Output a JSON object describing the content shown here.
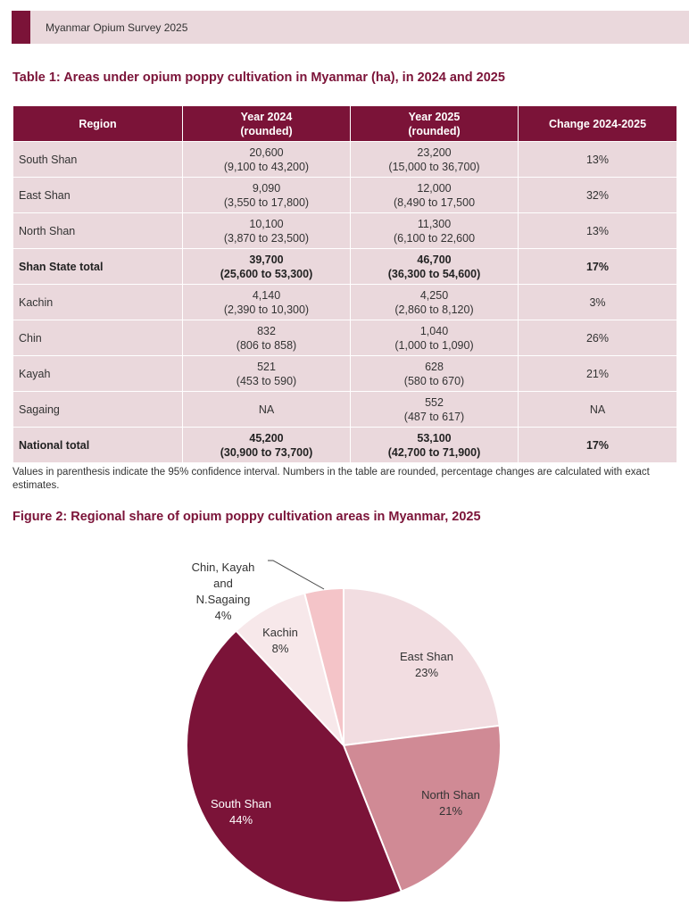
{
  "header": {
    "running_title": "Myanmar Opium Survey 2025"
  },
  "table": {
    "title": "Table 1: Areas under opium poppy cultivation in Myanmar (ha), in 2024 and 2025",
    "columns": [
      [
        "Region"
      ],
      [
        "Year 2024",
        "(rounded)"
      ],
      [
        "Year 2025",
        "(rounded)"
      ],
      [
        "Change 2024-2025"
      ]
    ],
    "rows": [
      {
        "region": "South Shan",
        "y2024": "20,600",
        "ci2024": "(9,100 to 43,200)",
        "y2025": "23,200",
        "ci2025": "(15,000 to 36,700)",
        "change": "13%",
        "bold": false
      },
      {
        "region": "East Shan",
        "y2024": "9,090",
        "ci2024": "(3,550 to 17,800)",
        "y2025": "12,000",
        "ci2025": "(8,490 to 17,500",
        "change": "32%",
        "bold": false
      },
      {
        "region": "North Shan",
        "y2024": "10,100",
        "ci2024": "(3,870 to 23,500)",
        "y2025": "11,300",
        "ci2025": "(6,100 to 22,600",
        "change": "13%",
        "bold": false
      },
      {
        "region": "Shan State total",
        "y2024": "39,700",
        "ci2024": "(25,600 to 53,300)",
        "y2025": "46,700",
        "ci2025": "(36,300 to 54,600)",
        "change": "17%",
        "bold": true
      },
      {
        "region": "Kachin",
        "y2024": "4,140",
        "ci2024": "(2,390 to 10,300)",
        "y2025": "4,250",
        "ci2025": "(2,860 to 8,120)",
        "change": "3%",
        "bold": false
      },
      {
        "region": "Chin",
        "y2024": "832",
        "ci2024": "(806 to 858)",
        "y2025": "1,040",
        "ci2025": "(1,000 to 1,090)",
        "change": "26%",
        "bold": false
      },
      {
        "region": "Kayah",
        "y2024": "521",
        "ci2024": "(453 to 590)",
        "y2025": "628",
        "ci2025": "(580 to 670)",
        "change": "21%",
        "bold": false
      },
      {
        "region": "Sagaing",
        "y2024": "NA",
        "ci2024": "",
        "y2025": "552",
        "ci2025": "(487 to 617)",
        "change": "NA",
        "bold": false
      },
      {
        "region": "National total",
        "y2024": "45,200",
        "ci2024": "(30,900 to 73,700)",
        "y2025": "53,100",
        "ci2025": "(42,700 to 71,900)",
        "change": "17%",
        "bold": true
      }
    ],
    "note": "Values in parenthesis indicate the 95% confidence interval. Numbers in the table are rounded, percentage changes are calculated with exact estimates."
  },
  "figure": {
    "title": "Figure 2: Regional share of opium poppy cultivation areas in Myanmar, 2025"
  },
  "chart_data": {
    "type": "pie",
    "title": "Figure 2: Regional share of opium poppy cultivation areas in Myanmar, 2025",
    "slices": [
      {
        "label": "East Shan",
        "value": 23,
        "color": "#f2dde1"
      },
      {
        "label": "North Shan",
        "value": 21,
        "color": "#d08a95"
      },
      {
        "label": "South Shan",
        "value": 44,
        "color": "#7b1338"
      },
      {
        "label": "Kachin",
        "value": 8,
        "color": "#f7e8ea"
      },
      {
        "label": "Chin, Kayah and N.Sagaing",
        "value": 4,
        "color": "#f4c4c8"
      }
    ]
  },
  "colors": {
    "accent": "#7b1338",
    "row_bg": "#ead8dc"
  }
}
